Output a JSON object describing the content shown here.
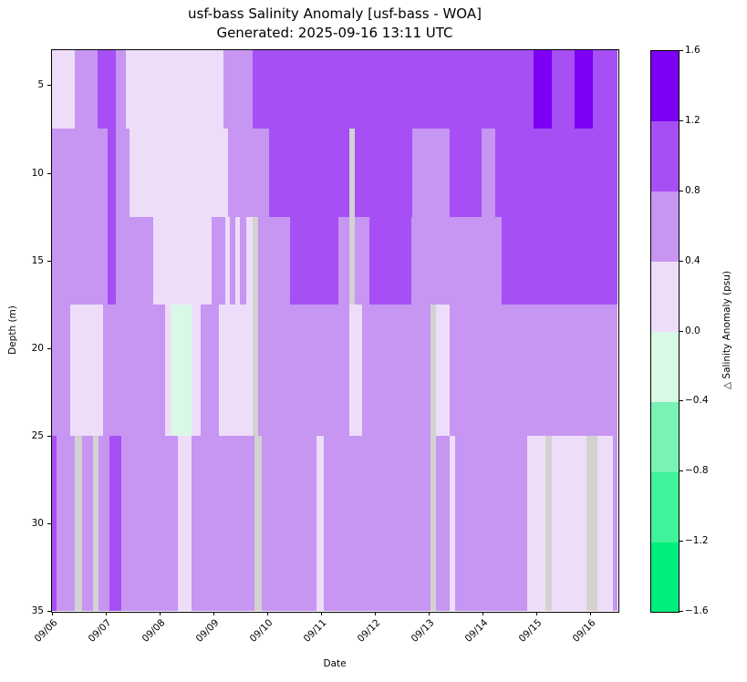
{
  "chart_data": {
    "type": "heatmap",
    "title_line1": "usf-bass Salinity Anomaly [usf-bass - WOA]",
    "title_line2": "Generated: 2025-09-16 13:11 UTC",
    "xlabel": "Date",
    "ylabel": "Depth (m)",
    "units": "psu",
    "x_domain_days": [
      6.0,
      16.51
    ],
    "depth_range_m": [
      3,
      35
    ],
    "grid": false,
    "xticks": [
      {
        "day": 6,
        "label": "09/06"
      },
      {
        "day": 7,
        "label": "09/07"
      },
      {
        "day": 8,
        "label": "09/08"
      },
      {
        "day": 9,
        "label": "09/09"
      },
      {
        "day": 10,
        "label": "09/10"
      },
      {
        "day": 11,
        "label": "09/11"
      },
      {
        "day": 12,
        "label": "09/12"
      },
      {
        "day": 13,
        "label": "09/13"
      },
      {
        "day": 14,
        "label": "09/14"
      },
      {
        "day": 15,
        "label": "09/15"
      },
      {
        "day": 16,
        "label": "09/16"
      }
    ],
    "yticks_m": [
      5,
      10,
      15,
      20,
      25,
      30,
      35
    ],
    "colorbar": {
      "label": "△ Salinity Anomaly (psu)",
      "range": [
        -1.6,
        1.6
      ],
      "ticks": [
        {
          "v": 1.6,
          "label": "1.6"
        },
        {
          "v": 1.2,
          "label": "1.2"
        },
        {
          "v": 0.8,
          "label": "0.8"
        },
        {
          "v": 0.4,
          "label": "0.4"
        },
        {
          "v": 0.0,
          "label": "0.0"
        },
        {
          "v": -0.4,
          "label": "−0.4"
        },
        {
          "v": -0.8,
          "label": "−0.8"
        },
        {
          "v": -1.2,
          "label": "−1.2"
        },
        {
          "v": -1.6,
          "label": "−1.6"
        }
      ]
    },
    "colormap": [
      {
        "range": [
          -1.6,
          -1.2
        ],
        "color": "#00ef7c"
      },
      {
        "range": [
          -1.2,
          -0.8
        ],
        "color": "#3ff29b"
      },
      {
        "range": [
          -0.8,
          -0.4
        ],
        "color": "#79f2b4"
      },
      {
        "range": [
          -0.4,
          0.0
        ],
        "color": "#d9f9e7"
      },
      {
        "range": [
          0.0,
          0.4
        ],
        "color": "#eeddf9"
      },
      {
        "range": [
          0.4,
          0.8
        ],
        "color": "#c795f2"
      },
      {
        "range": [
          0.8,
          1.2
        ],
        "color": "#a64ff5"
      },
      {
        "range": [
          1.2,
          1.6
        ],
        "color": "#7d00f5"
      }
    ],
    "missing_color": "#d2d2d2",
    "rows_note": "segments are [start_day, end_day, anomaly_psu]; null = missing data (gray)",
    "rows": [
      {
        "depth": [
          3,
          7.5
        ],
        "segments": [
          [
            6.0,
            6.42,
            0.2
          ],
          [
            6.42,
            6.85,
            0.6
          ],
          [
            6.85,
            7.19,
            1.0
          ],
          [
            7.19,
            7.37,
            0.6
          ],
          [
            7.37,
            9.19,
            0.2
          ],
          [
            9.19,
            9.73,
            0.6
          ],
          [
            9.73,
            14.95,
            1.0
          ],
          [
            14.95,
            15.29,
            1.4
          ],
          [
            15.29,
            15.71,
            1.0
          ],
          [
            15.71,
            16.05,
            1.4
          ],
          [
            16.05,
            16.51,
            1.0
          ]
        ]
      },
      {
        "depth": [
          7.5,
          12.5
        ],
        "segments": [
          [
            6.0,
            7.03,
            0.6
          ],
          [
            7.03,
            7.19,
            1.0
          ],
          [
            7.19,
            7.44,
            0.6
          ],
          [
            7.44,
            9.27,
            0.2
          ],
          [
            9.27,
            10.03,
            0.6
          ],
          [
            10.03,
            11.53,
            1.0
          ],
          [
            11.53,
            11.62,
            null
          ],
          [
            11.62,
            12.69,
            1.0
          ],
          [
            12.69,
            13.39,
            0.6
          ],
          [
            13.39,
            13.98,
            1.0
          ],
          [
            13.98,
            14.24,
            0.6
          ],
          [
            14.24,
            16.51,
            1.0
          ]
        ]
      },
      {
        "depth": [
          12.5,
          17.5
        ],
        "segments": [
          [
            6.0,
            7.03,
            0.6
          ],
          [
            7.03,
            7.19,
            1.0
          ],
          [
            7.19,
            7.88,
            0.6
          ],
          [
            7.88,
            8.97,
            0.2
          ],
          [
            8.97,
            9.22,
            0.6
          ],
          [
            9.22,
            9.31,
            0.2
          ],
          [
            9.31,
            9.41,
            0.6
          ],
          [
            9.41,
            9.49,
            0.2
          ],
          [
            9.49,
            9.61,
            0.6
          ],
          [
            9.61,
            9.73,
            0.2
          ],
          [
            9.73,
            9.83,
            null
          ],
          [
            9.83,
            10.42,
            0.6
          ],
          [
            10.42,
            11.32,
            1.0
          ],
          [
            11.32,
            11.53,
            0.6
          ],
          [
            11.53,
            11.62,
            null
          ],
          [
            11.62,
            11.9,
            0.6
          ],
          [
            11.9,
            12.68,
            1.0
          ],
          [
            12.68,
            14.36,
            0.6
          ],
          [
            14.36,
            16.51,
            1.0
          ]
        ]
      },
      {
        "depth": [
          17.5,
          25
        ],
        "segments": [
          [
            6.0,
            6.34,
            0.6
          ],
          [
            6.34,
            6.95,
            0.2
          ],
          [
            6.95,
            8.1,
            0.6
          ],
          [
            8.1,
            8.22,
            0.2
          ],
          [
            8.22,
            8.59,
            -0.2
          ],
          [
            8.59,
            8.76,
            0.2
          ],
          [
            8.76,
            9.1,
            0.6
          ],
          [
            9.1,
            9.73,
            0.2
          ],
          [
            9.73,
            9.83,
            null
          ],
          [
            9.83,
            11.53,
            0.6
          ],
          [
            11.53,
            11.76,
            0.2
          ],
          [
            11.76,
            13.03,
            0.6
          ],
          [
            13.03,
            13.14,
            null
          ],
          [
            13.14,
            13.39,
            0.2
          ],
          [
            13.39,
            16.51,
            0.6
          ]
        ]
      },
      {
        "depth": [
          25,
          35
        ],
        "segments": [
          [
            6.0,
            6.08,
            1.0
          ],
          [
            6.08,
            6.42,
            0.6
          ],
          [
            6.42,
            6.56,
            null
          ],
          [
            6.56,
            6.76,
            0.6
          ],
          [
            6.76,
            6.86,
            null
          ],
          [
            6.86,
            7.07,
            0.6
          ],
          [
            7.07,
            7.29,
            1.0
          ],
          [
            7.29,
            8.34,
            0.6
          ],
          [
            8.34,
            8.59,
            0.2
          ],
          [
            8.59,
            9.76,
            0.6
          ],
          [
            9.76,
            9.9,
            null
          ],
          [
            9.9,
            10.92,
            0.6
          ],
          [
            10.92,
            11.05,
            0.2
          ],
          [
            11.05,
            13.03,
            0.6
          ],
          [
            13.03,
            13.14,
            null
          ],
          [
            13.14,
            13.39,
            0.6
          ],
          [
            13.39,
            13.49,
            0.2
          ],
          [
            13.49,
            14.83,
            0.6
          ],
          [
            14.83,
            15.17,
            0.2
          ],
          [
            15.17,
            15.29,
            null
          ],
          [
            15.29,
            15.93,
            0.2
          ],
          [
            15.93,
            16.14,
            null
          ],
          [
            16.14,
            16.42,
            0.2
          ],
          [
            16.42,
            16.51,
            0.6
          ]
        ]
      }
    ]
  }
}
